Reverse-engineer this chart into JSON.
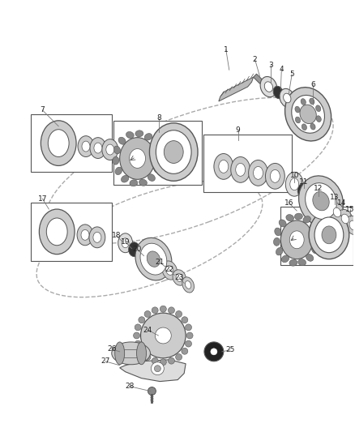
{
  "background_color": "#ffffff",
  "fig_width": 4.38,
  "fig_height": 5.33,
  "dpi": 100,
  "line_color": "#555555",
  "label_fontsize": 6.5,
  "label_color": "#222222"
}
